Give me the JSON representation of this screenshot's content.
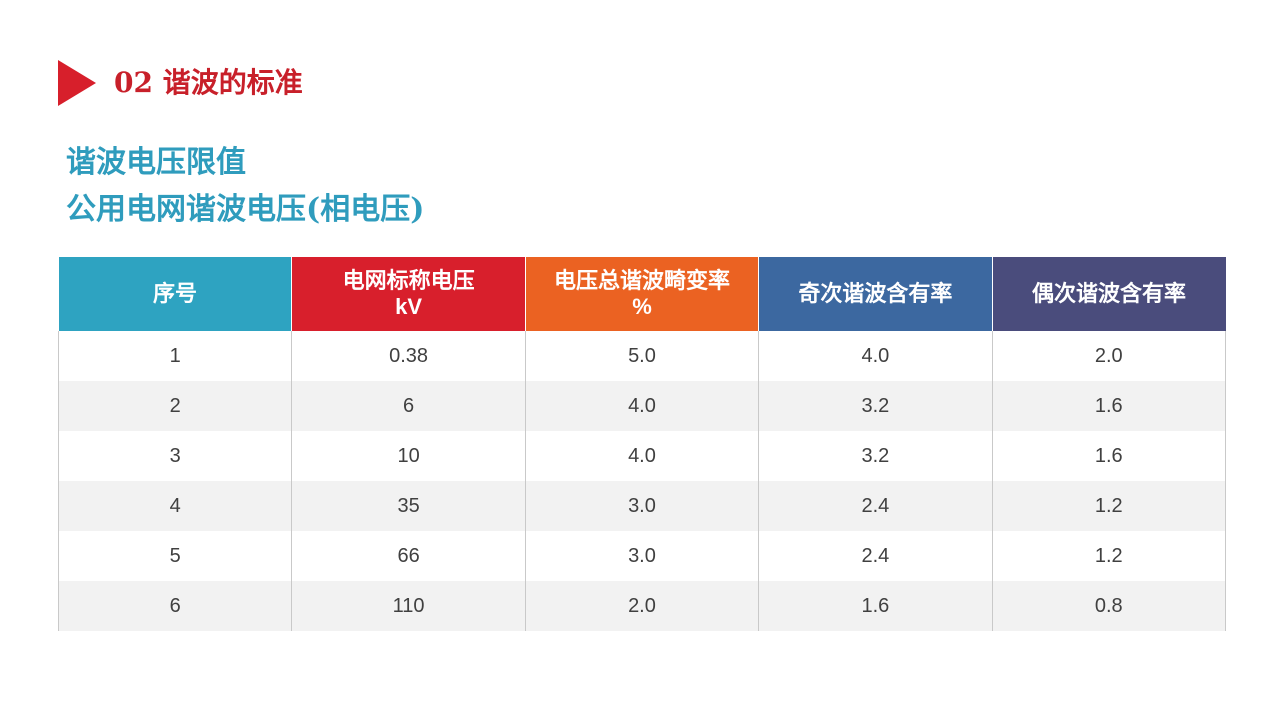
{
  "section": {
    "title": "02 谐波的标准",
    "accent_color": "#d71f2b"
  },
  "subtitles": [
    "谐波电压限值",
    "公用电网谐波电压(相电压)"
  ],
  "table": {
    "headers": [
      {
        "line1": "序号",
        "line2": "",
        "color": "#2ea3c1"
      },
      {
        "line1": "电网标称电压",
        "line2": "kV",
        "color": "#d81f2c"
      },
      {
        "line1": "电压总谐波畸变率",
        "line2": "%",
        "color": "#eb6222"
      },
      {
        "line1": "奇次谐波含有率",
        "line2": "",
        "color": "#3c68a0"
      },
      {
        "line1": "偶次谐波含有率",
        "line2": "",
        "color": "#4a4c7c"
      }
    ],
    "rows": [
      [
        "1",
        "0.38",
        "5.0",
        "4.0",
        "2.0"
      ],
      [
        "2",
        "6",
        "4.0",
        "3.2",
        "1.6"
      ],
      [
        "3",
        "10",
        "4.0",
        "3.2",
        "1.6"
      ],
      [
        "4",
        "35",
        "3.0",
        "2.4",
        "1.2"
      ],
      [
        "5",
        "66",
        "3.0",
        "2.4",
        "1.2"
      ],
      [
        "6",
        "110",
        "2.0",
        "1.6",
        "0.8"
      ]
    ]
  }
}
